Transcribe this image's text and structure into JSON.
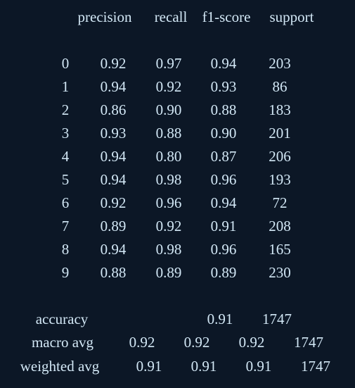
{
  "report": {
    "header": {
      "precision": "precision",
      "recall": "recall",
      "f1": "f1-score",
      "support": "support"
    },
    "rows": [
      {
        "label": "0",
        "precision": "0.92",
        "recall": "0.97",
        "f1": "0.94",
        "support": "203"
      },
      {
        "label": "1",
        "precision": "0.94",
        "recall": "0.92",
        "f1": "0.93",
        "support": "86"
      },
      {
        "label": "2",
        "precision": "0.86",
        "recall": "0.90",
        "f1": "0.88",
        "support": "183"
      },
      {
        "label": "3",
        "precision": "0.93",
        "recall": "0.88",
        "f1": "0.90",
        "support": "201"
      },
      {
        "label": "4",
        "precision": "0.94",
        "recall": "0.80",
        "f1": "0.87",
        "support": "206"
      },
      {
        "label": "5",
        "precision": "0.94",
        "recall": "0.98",
        "f1": "0.96",
        "support": "193"
      },
      {
        "label": "6",
        "precision": "0.92",
        "recall": "0.96",
        "f1": "0.94",
        "support": "72"
      },
      {
        "label": "7",
        "precision": "0.89",
        "recall": "0.92",
        "f1": "0.91",
        "support": "208"
      },
      {
        "label": "8",
        "precision": "0.94",
        "recall": "0.98",
        "f1": "0.96",
        "support": "165"
      },
      {
        "label": "9",
        "precision": "0.88",
        "recall": "0.89",
        "f1": "0.89",
        "support": "230"
      }
    ],
    "accuracy": {
      "label": "accuracy",
      "f1": "0.91",
      "support": "1747"
    },
    "macro_avg": {
      "label": "macro avg",
      "precision": "0.92",
      "recall": "0.92",
      "f1": "0.92",
      "support": "1747"
    },
    "weighted_avg": {
      "label": "weighted avg",
      "precision": "0.91",
      "recall": "0.91",
      "f1": "0.91",
      "support": "1747"
    }
  },
  "colors": {
    "background": "#0c1726",
    "text": "#d2e7f5"
  }
}
